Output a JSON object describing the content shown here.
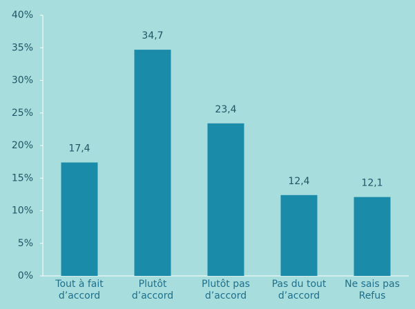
{
  "chart_data": {
    "type": "bar",
    "categories": [
      "Tout à fait\nd’accord",
      "Plutôt\nd’accord",
      "Plutôt pas\nd’accord",
      "Pas du tout\nd’accord",
      "Ne sais pas\nRefus"
    ],
    "values": [
      17.4,
      34.7,
      23.4,
      12.4,
      12.1
    ],
    "value_labels": [
      "17,4",
      "34,7",
      "23,4",
      "12,4",
      "12,1"
    ],
    "color": "#1a8ba9",
    "ylim": [
      0,
      40
    ],
    "yticks": [
      {
        "value": 0,
        "label": "0%"
      },
      {
        "value": 5,
        "label": "5%"
      },
      {
        "value": 10,
        "label": "10%"
      },
      {
        "value": 15,
        "label": "15%"
      },
      {
        "value": 20,
        "label": "20%"
      },
      {
        "value": 25,
        "label": "25%"
      },
      {
        "value": 30,
        "label": "30%"
      },
      {
        "value": 35,
        "label": "35%"
      },
      {
        "value": 40,
        "label": "40%"
      }
    ]
  }
}
